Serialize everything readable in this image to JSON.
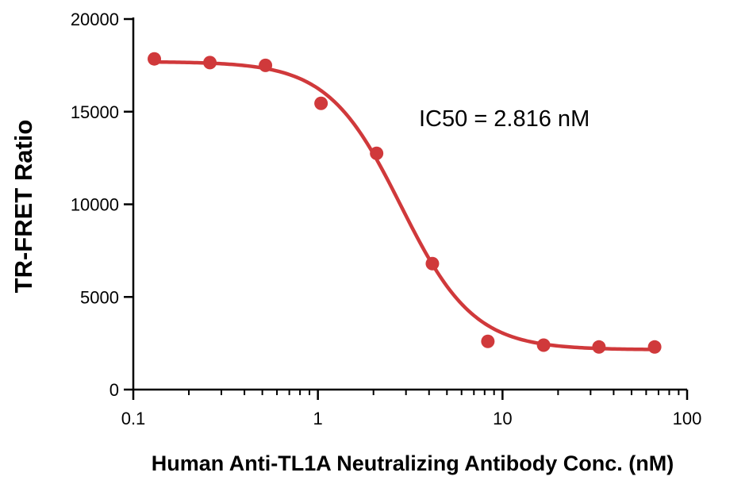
{
  "chart_data": {
    "type": "scatter",
    "xlabel": "Human Anti-TL1A Neutralizing Antibody Conc. (nM)",
    "ylabel": "TR-FRET Ratio",
    "xscale": "log",
    "xlim": [
      0.1,
      100
    ],
    "ylim": [
      0,
      20000
    ],
    "x_ticks": [
      {
        "value": 0.1,
        "label": "0.1"
      },
      {
        "value": 1,
        "label": "1"
      },
      {
        "value": 10,
        "label": "10"
      },
      {
        "value": 100,
        "label": "100"
      }
    ],
    "y_ticks": [
      {
        "value": 0,
        "label": "0"
      },
      {
        "value": 5000,
        "label": "5000"
      },
      {
        "value": 10000,
        "label": "10000"
      },
      {
        "value": 15000,
        "label": "15000"
      },
      {
        "value": 20000,
        "label": "20000"
      }
    ],
    "series": [
      {
        "points": [
          {
            "x": 0.13,
            "y": 17850
          },
          {
            "x": 0.26,
            "y": 17650
          },
          {
            "x": 0.52,
            "y": 17500
          },
          {
            "x": 1.04,
            "y": 15450
          },
          {
            "x": 2.08,
            "y": 12750
          },
          {
            "x": 4.17,
            "y": 6800
          },
          {
            "x": 8.33,
            "y": 2600
          },
          {
            "x": 16.7,
            "y": 2400
          },
          {
            "x": 33.3,
            "y": 2300
          },
          {
            "x": 66.7,
            "y": 2300
          }
        ],
        "fit": {
          "model": "4PL",
          "top": 17700,
          "bottom": 2150,
          "ic50": 2.816,
          "hill": 2.2
        }
      }
    ],
    "annotations": [
      "IC50 = 2.816 nM"
    ],
    "color": "#d0393b",
    "grid": false,
    "legend": "none"
  }
}
